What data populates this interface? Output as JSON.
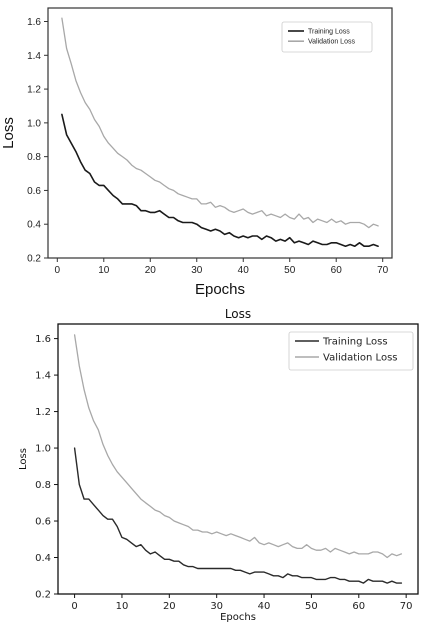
{
  "chart_data": [
    {
      "type": "line",
      "title": "",
      "xlabel": "Epochs",
      "ylabel": "Loss",
      "xlim": [
        -2,
        72
      ],
      "ylim": [
        0.2,
        1.68
      ],
      "xticks": [
        0,
        10,
        20,
        30,
        40,
        50,
        60,
        70
      ],
      "yticks": [
        0.2,
        0.4,
        0.6,
        0.8,
        1.0,
        1.2,
        1.4,
        1.6
      ],
      "ytick_labels": [
        "0.2",
        "0.4",
        "0.6",
        "0.8",
        "1.0",
        "1.2",
        "1.4",
        "1.6"
      ],
      "legend": "top-right",
      "grid": false,
      "series": [
        {
          "name": "Training Loss",
          "color": "#1a1a1a",
          "x": [
            1,
            2,
            3,
            4,
            5,
            6,
            7,
            8,
            9,
            10,
            11,
            12,
            13,
            14,
            15,
            16,
            17,
            18,
            19,
            20,
            21,
            22,
            23,
            24,
            25,
            26,
            27,
            28,
            29,
            30,
            31,
            32,
            33,
            34,
            35,
            36,
            37,
            38,
            39,
            40,
            41,
            42,
            43,
            44,
            45,
            46,
            47,
            48,
            49,
            50,
            51,
            52,
            53,
            54,
            55,
            56,
            57,
            58,
            59,
            60,
            61,
            62,
            63,
            64,
            65,
            66,
            67,
            68,
            69
          ],
          "y": [
            1.05,
            0.93,
            0.88,
            0.83,
            0.77,
            0.72,
            0.7,
            0.65,
            0.63,
            0.63,
            0.6,
            0.57,
            0.55,
            0.52,
            0.52,
            0.52,
            0.51,
            0.48,
            0.48,
            0.47,
            0.47,
            0.48,
            0.46,
            0.44,
            0.44,
            0.42,
            0.41,
            0.41,
            0.41,
            0.4,
            0.38,
            0.37,
            0.36,
            0.37,
            0.36,
            0.34,
            0.35,
            0.33,
            0.32,
            0.33,
            0.32,
            0.33,
            0.33,
            0.31,
            0.33,
            0.32,
            0.3,
            0.31,
            0.3,
            0.32,
            0.29,
            0.3,
            0.29,
            0.28,
            0.3,
            0.29,
            0.28,
            0.28,
            0.29,
            0.29,
            0.28,
            0.27,
            0.28,
            0.27,
            0.29,
            0.27,
            0.27,
            0.28,
            0.27
          ]
        },
        {
          "name": "Validation Loss",
          "color": "#a8a8a8",
          "x": [
            1,
            2,
            3,
            4,
            5,
            6,
            7,
            8,
            9,
            10,
            11,
            12,
            13,
            14,
            15,
            16,
            17,
            18,
            19,
            20,
            21,
            22,
            23,
            24,
            25,
            26,
            27,
            28,
            29,
            30,
            31,
            32,
            33,
            34,
            35,
            36,
            37,
            38,
            39,
            40,
            41,
            42,
            43,
            44,
            45,
            46,
            47,
            48,
            49,
            50,
            51,
            52,
            53,
            54,
            55,
            56,
            57,
            58,
            59,
            60,
            61,
            62,
            63,
            64,
            65,
            66,
            67,
            68,
            69
          ],
          "y": [
            1.62,
            1.44,
            1.35,
            1.25,
            1.18,
            1.12,
            1.08,
            1.02,
            0.98,
            0.92,
            0.88,
            0.85,
            0.82,
            0.8,
            0.78,
            0.75,
            0.73,
            0.72,
            0.7,
            0.68,
            0.66,
            0.65,
            0.63,
            0.61,
            0.6,
            0.58,
            0.57,
            0.56,
            0.55,
            0.55,
            0.52,
            0.52,
            0.53,
            0.5,
            0.51,
            0.5,
            0.48,
            0.47,
            0.48,
            0.49,
            0.47,
            0.46,
            0.47,
            0.48,
            0.45,
            0.46,
            0.45,
            0.44,
            0.46,
            0.44,
            0.43,
            0.46,
            0.43,
            0.44,
            0.41,
            0.43,
            0.42,
            0.41,
            0.43,
            0.41,
            0.42,
            0.4,
            0.41,
            0.41,
            0.41,
            0.4,
            0.38,
            0.4,
            0.39
          ]
        }
      ]
    },
    {
      "type": "line",
      "title": "Loss",
      "xlabel": "Epochs",
      "ylabel": "Loss",
      "xlim": [
        -3.5,
        72.5
      ],
      "ylim": [
        0.2,
        1.68
      ],
      "xticks": [
        0,
        10,
        20,
        30,
        40,
        50,
        60,
        70
      ],
      "yticks": [
        0.2,
        0.4,
        0.6,
        0.8,
        1.0,
        1.2,
        1.4,
        1.6
      ],
      "ytick_labels": [
        "0.2",
        "0.4",
        "0.6",
        "0.8",
        "1.0",
        "1.2",
        "1.4",
        "1.6"
      ],
      "legend": "top-right",
      "grid": false,
      "series": [
        {
          "name": "Training Loss",
          "color": "#2a2a2a",
          "x": [
            0,
            1,
            2,
            3,
            4,
            5,
            6,
            7,
            8,
            9,
            10,
            11,
            12,
            13,
            14,
            15,
            16,
            17,
            18,
            19,
            20,
            21,
            22,
            23,
            24,
            25,
            26,
            27,
            28,
            29,
            30,
            31,
            32,
            33,
            34,
            35,
            36,
            37,
            38,
            39,
            40,
            41,
            42,
            43,
            44,
            45,
            46,
            47,
            48,
            49,
            50,
            51,
            52,
            53,
            54,
            55,
            56,
            57,
            58,
            59,
            60,
            61,
            62,
            63,
            64,
            65,
            66,
            67,
            68,
            69
          ],
          "y": [
            1.0,
            0.8,
            0.72,
            0.72,
            0.69,
            0.66,
            0.63,
            0.61,
            0.61,
            0.57,
            0.51,
            0.5,
            0.48,
            0.46,
            0.47,
            0.44,
            0.42,
            0.43,
            0.41,
            0.39,
            0.39,
            0.38,
            0.38,
            0.36,
            0.35,
            0.35,
            0.34,
            0.34,
            0.34,
            0.34,
            0.34,
            0.34,
            0.34,
            0.34,
            0.33,
            0.33,
            0.32,
            0.31,
            0.32,
            0.32,
            0.32,
            0.31,
            0.3,
            0.3,
            0.29,
            0.31,
            0.3,
            0.3,
            0.29,
            0.29,
            0.29,
            0.28,
            0.28,
            0.28,
            0.29,
            0.29,
            0.28,
            0.28,
            0.27,
            0.27,
            0.27,
            0.26,
            0.28,
            0.27,
            0.27,
            0.27,
            0.26,
            0.27,
            0.26,
            0.26
          ]
        },
        {
          "name": "Validation Loss",
          "color": "#a8a8a8",
          "x": [
            0,
            1,
            2,
            3,
            4,
            5,
            6,
            7,
            8,
            9,
            10,
            11,
            12,
            13,
            14,
            15,
            16,
            17,
            18,
            19,
            20,
            21,
            22,
            23,
            24,
            25,
            26,
            27,
            28,
            29,
            30,
            31,
            32,
            33,
            34,
            35,
            36,
            37,
            38,
            39,
            40,
            41,
            42,
            43,
            44,
            45,
            46,
            47,
            48,
            49,
            50,
            51,
            52,
            53,
            54,
            55,
            56,
            57,
            58,
            59,
            60,
            61,
            62,
            63,
            64,
            65,
            66,
            67,
            68,
            69
          ],
          "y": [
            1.62,
            1.45,
            1.32,
            1.22,
            1.15,
            1.1,
            1.02,
            0.96,
            0.91,
            0.87,
            0.84,
            0.81,
            0.78,
            0.75,
            0.72,
            0.7,
            0.68,
            0.66,
            0.65,
            0.63,
            0.62,
            0.6,
            0.59,
            0.58,
            0.57,
            0.55,
            0.55,
            0.54,
            0.54,
            0.53,
            0.54,
            0.53,
            0.52,
            0.53,
            0.52,
            0.51,
            0.5,
            0.49,
            0.51,
            0.48,
            0.47,
            0.48,
            0.47,
            0.46,
            0.47,
            0.48,
            0.46,
            0.45,
            0.45,
            0.47,
            0.45,
            0.44,
            0.44,
            0.45,
            0.43,
            0.45,
            0.44,
            0.43,
            0.42,
            0.43,
            0.42,
            0.42,
            0.42,
            0.43,
            0.43,
            0.42,
            0.4,
            0.42,
            0.41,
            0.42
          ]
        }
      ]
    }
  ]
}
